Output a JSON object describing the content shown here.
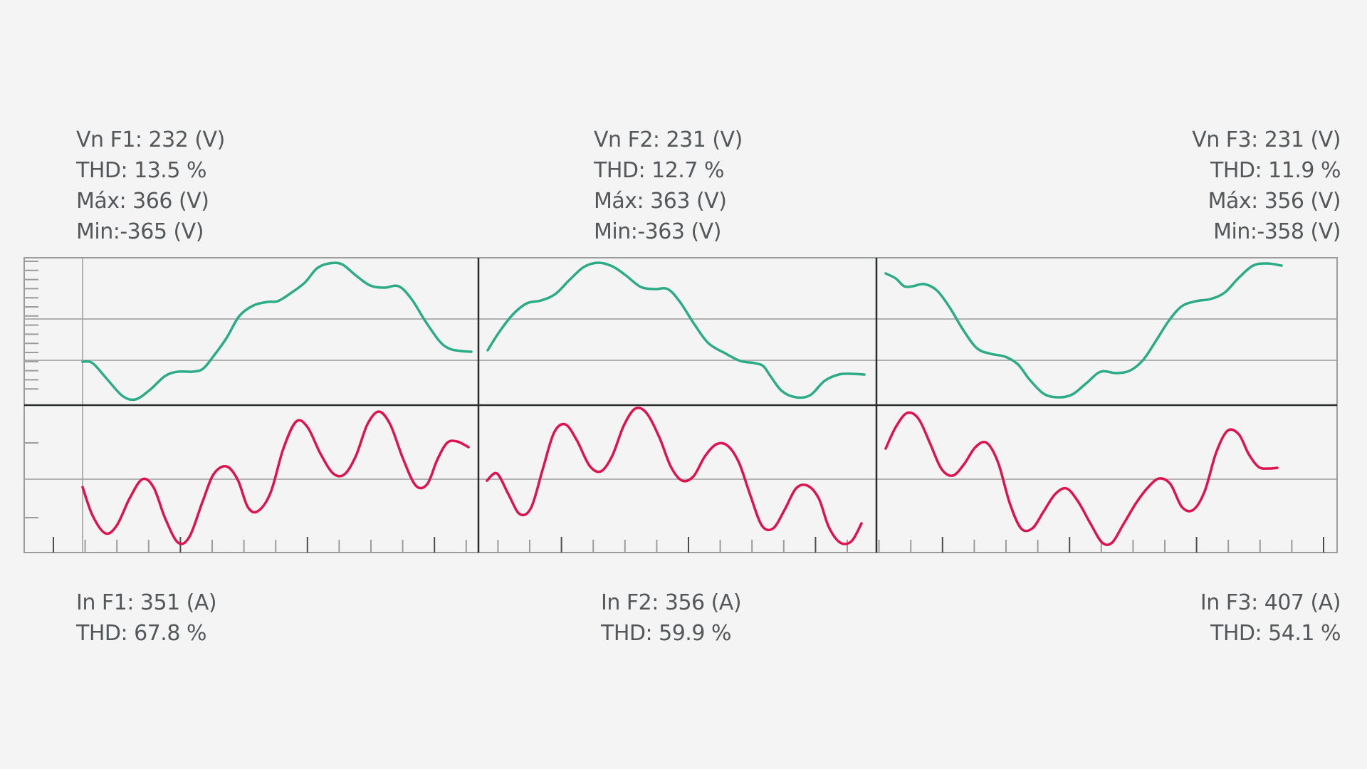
{
  "phases": [
    {
      "voltage": {
        "label": "Vn F1: 232 (V)",
        "thd": "THD: 13.5 %",
        "max": "Máx: 366 (V)",
        "min": "Min:-365 (V)"
      },
      "current": {
        "label": "In F1: 351 (A)",
        "thd": "THD: 67.8 %"
      }
    },
    {
      "voltage": {
        "label": "Vn F2: 231 (V)",
        "thd": "THD: 12.7 %",
        "max": "Máx: 363 (V)",
        "min": "Min:-363 (V)"
      },
      "current": {
        "label": "In F2: 356 (A)",
        "thd": "THD: 59.9 %"
      }
    },
    {
      "voltage": {
        "label": "Vn F3: 231 (V)",
        "thd": "THD: 11.9 %",
        "max": "Máx: 356 (V)",
        "min": "Min:-358 (V)"
      },
      "current": {
        "label": "In F3: 407 (A)",
        "thd": "THD: 54.1 %"
      }
    }
  ],
  "colors": {
    "voltage_trace": "#2bab86",
    "current_trace": "#e0124e",
    "grid": "#9a9c9d",
    "divider": "#2a2c2e",
    "background": "#f3f4f3",
    "text": "#55585b"
  }
}
